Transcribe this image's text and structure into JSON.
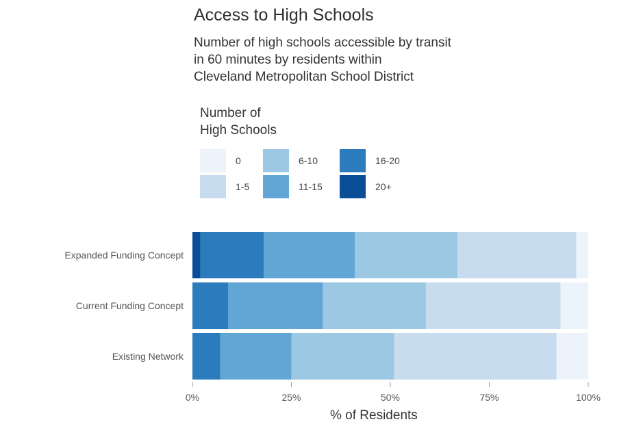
{
  "header": {
    "title": "Access to High Schools",
    "subtitle": [
      "Number of high schools accessible by transit",
      "in 60 minutes by residents within",
      "Cleveland Metropolitan School District"
    ]
  },
  "legend": {
    "title": [
      "Number of",
      "High Schools"
    ],
    "items": [
      {
        "label": "0",
        "color": "#edf3fb"
      },
      {
        "label": "1-5",
        "color": "#c8dcef"
      },
      {
        "label": "6-10",
        "color": "#9dc8e3"
      },
      {
        "label": "11-15",
        "color": "#62a6d6"
      },
      {
        "label": "16-20",
        "color": "#2c7cbd"
      },
      {
        "label": "20+",
        "color": "#0b4d96"
      }
    ]
  },
  "chart_data": {
    "type": "bar",
    "orientation": "horizontal",
    "stacked": true,
    "categories": [
      "Expanded Funding Concept",
      "Current Funding Concept",
      "Existing Network"
    ],
    "series": [
      {
        "name": "20+",
        "color": "#0b4d96",
        "values": [
          2,
          0,
          0
        ]
      },
      {
        "name": "16-20",
        "color": "#2c7cbd",
        "values": [
          16,
          9,
          7
        ]
      },
      {
        "name": "11-15",
        "color": "#62a6d6",
        "values": [
          23,
          24,
          18
        ]
      },
      {
        "name": "6-10",
        "color": "#9dc8e3",
        "values": [
          26,
          26,
          26
        ]
      },
      {
        "name": "1-5",
        "color": "#c8dcef",
        "values": [
          30,
          34,
          41
        ]
      },
      {
        "name": "0",
        "color": "#edf3fb",
        "values": [
          3,
          7,
          8
        ]
      }
    ],
    "xlabel": "% of Residents",
    "ylabel": "",
    "xlim": [
      0,
      100
    ],
    "xticks": [
      "0%",
      "25%",
      "50%",
      "75%",
      "100%"
    ],
    "legend_position": "top",
    "grid": false
  }
}
